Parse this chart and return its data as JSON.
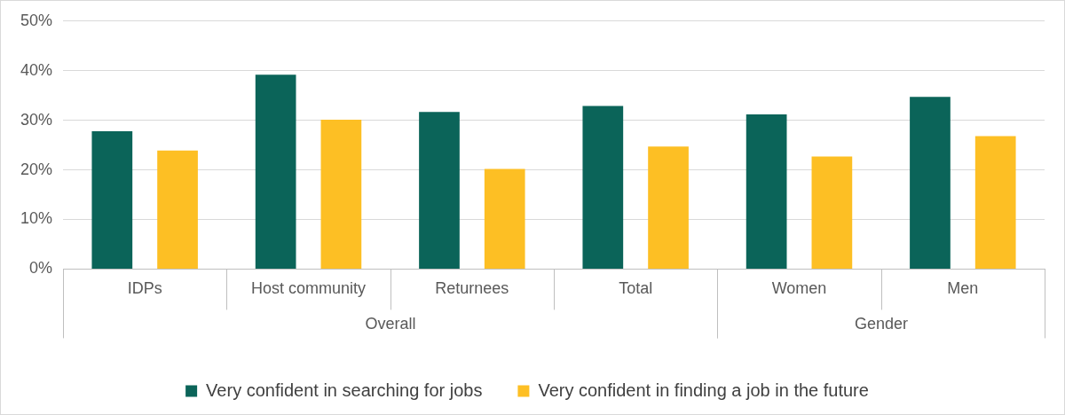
{
  "chart_data": {
    "type": "bar",
    "categories": [
      "IDPs",
      "Host community",
      "Returnees",
      "Total",
      "Women",
      "Men"
    ],
    "series": [
      {
        "name": "Very confident in searching for jobs",
        "color": "#0b6459",
        "values": [
          27.8,
          39.2,
          31.7,
          32.9,
          31.2,
          34.7
        ]
      },
      {
        "name": "Very confident in finding a job in the future",
        "color": "#fdbf24",
        "values": [
          23.9,
          30.1,
          20.2,
          24.7,
          22.7,
          26.8
        ]
      }
    ],
    "ylim": [
      0,
      50
    ],
    "yticks": [
      {
        "value": 0,
        "label": "0%"
      },
      {
        "value": 10,
        "label": "10%"
      },
      {
        "value": 20,
        "label": "20%"
      },
      {
        "value": 30,
        "label": "30%"
      },
      {
        "value": 40,
        "label": "40%"
      },
      {
        "value": 50,
        "label": "50%"
      }
    ],
    "grid": "y",
    "legend": "bottom",
    "annotations": [
      "Overall",
      "Gender"
    ]
  }
}
